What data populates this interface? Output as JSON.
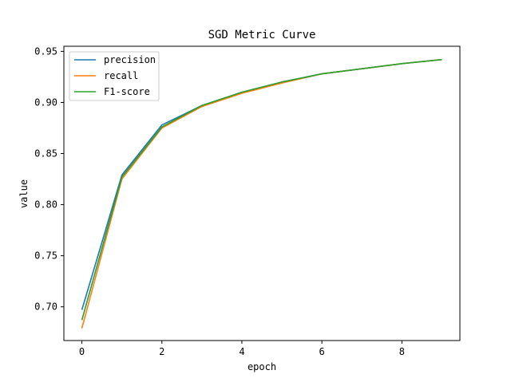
{
  "chart_data": {
    "type": "line",
    "title": "SGD Metric Curve",
    "xlabel": "epoch",
    "ylabel": "value",
    "xlim": [
      -0.45,
      9.45
    ],
    "ylim": [
      0.667,
      0.955
    ],
    "xticks": [
      0,
      2,
      4,
      6,
      8
    ],
    "xtick_labels": [
      "0",
      "2",
      "4",
      "6",
      "8"
    ],
    "yticks": [
      0.7,
      0.75,
      0.8,
      0.85,
      0.9,
      0.95
    ],
    "ytick_labels": [
      "0.70",
      "0.75",
      "0.80",
      "0.85",
      "0.90",
      "0.95"
    ],
    "grid": false,
    "legend_position": "top-left",
    "x": [
      0,
      1,
      2,
      3,
      4,
      5,
      6,
      7,
      8,
      9
    ],
    "series": [
      {
        "name": "precision",
        "color": "#1f77b4",
        "values": [
          0.697,
          0.829,
          0.878,
          0.897,
          0.91,
          0.92,
          0.928,
          0.933,
          0.938,
          0.942
        ]
      },
      {
        "name": "recall",
        "color": "#ff7f0e",
        "values": [
          0.679,
          0.825,
          0.875,
          0.896,
          0.909,
          0.919,
          0.928,
          0.933,
          0.938,
          0.942
        ]
      },
      {
        "name": "F1-score",
        "color": "#2ca02c",
        "values": [
          0.687,
          0.827,
          0.876,
          0.897,
          0.91,
          0.92,
          0.928,
          0.933,
          0.938,
          0.942
        ]
      }
    ]
  }
}
